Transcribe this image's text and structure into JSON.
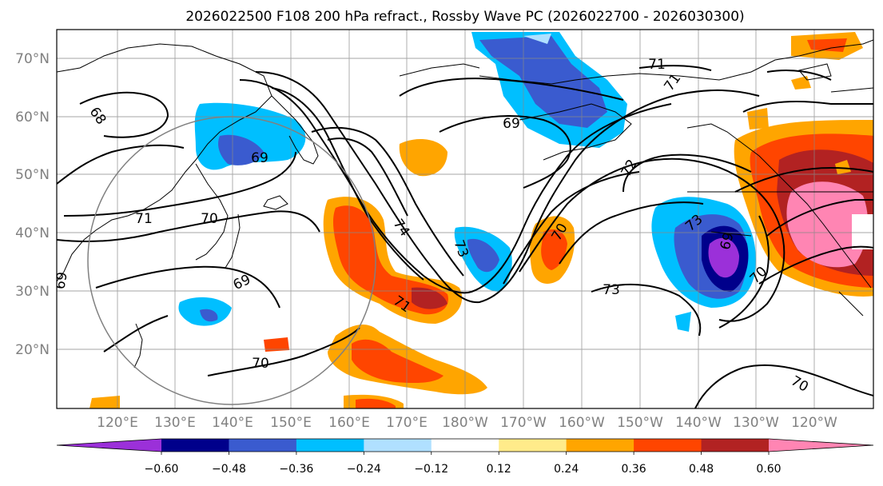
{
  "title": "2026022500 F108 200 hPa refract., Rossby Wave PC (2026022700 - 2026030300)",
  "lat_labels": [
    "70°N",
    "60°N",
    "50°N",
    "40°N",
    "30°N",
    "20°N"
  ],
  "lon_labels": [
    "120°E",
    "130°E",
    "140°E",
    "150°E",
    "160°E",
    "170°E",
    "180°W",
    "170°W",
    "160°W",
    "150°W",
    "140°W",
    "130°W",
    "120°W"
  ],
  "colorbar": {
    "colors": [
      "#9b30d9",
      "#00008b",
      "#3a5bcf",
      "#00bfff",
      "#b0e0ff",
      "#ffffff",
      "#ffeb8a",
      "#ffa500",
      "#ff4500",
      "#b22222",
      "#ff85b3"
    ],
    "tick_labels": [
      "−0.60",
      "−0.48",
      "−0.36",
      "−0.24",
      "−0.12",
      "0.12",
      "0.24",
      "0.36",
      "0.48",
      "0.60"
    ]
  },
  "contour_labels": [
    "68",
    "69",
    "71",
    "70",
    "74",
    "73",
    "71",
    "69",
    "70",
    "71",
    "71",
    "72",
    "73",
    "69",
    "70",
    "73",
    "70",
    "69",
    "69",
    "70"
  ]
}
